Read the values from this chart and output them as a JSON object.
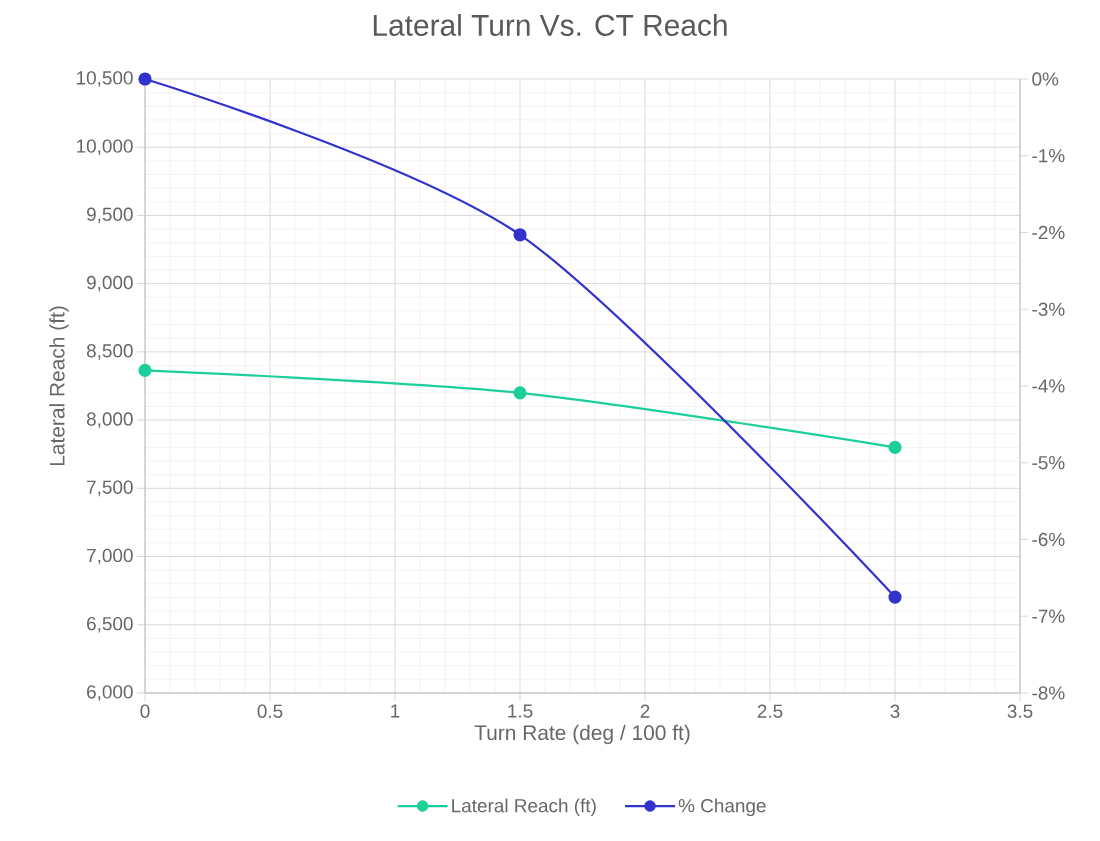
{
  "chart_data": {
    "type": "line",
    "title": "Lateral Turn Vs. CT Reach",
    "xlabel": "Turn Rate (deg / 100 ft)",
    "ylabel": "Lateral Reach (ft)",
    "x": [
      0,
      1.5,
      3
    ],
    "series": [
      {
        "name": "Lateral Reach (ft)",
        "color": "#1ccf9a",
        "values": [
          8365,
          8200,
          7800
        ]
      },
      {
        "name": "% Change",
        "color": "#3333cc",
        "values": [
          0,
          -2.03,
          -6.75
        ],
        "axis": "y2"
      }
    ],
    "xlim": [
      0,
      3.5
    ],
    "xticks": [
      0,
      0.5,
      1,
      1.5,
      2,
      2.5,
      3,
      3.5
    ],
    "ylim": [
      6000,
      10500
    ],
    "yticks": [
      {
        "value": 6000,
        "label": "6,000"
      },
      {
        "value": 6500,
        "label": "6,500"
      },
      {
        "value": 7000,
        "label": "7,000"
      },
      {
        "value": 7500,
        "label": "7,500"
      },
      {
        "value": 8000,
        "label": "8,000"
      },
      {
        "value": 8500,
        "label": "8,500"
      },
      {
        "value": 9000,
        "label": "9,000"
      },
      {
        "value": 9500,
        "label": "9,500"
      },
      {
        "value": 10000,
        "label": "10,000"
      },
      {
        "value": 10500,
        "label": "10,500"
      }
    ],
    "y2lim": [
      -8,
      0
    ],
    "y2ticks": [
      {
        "value": -8,
        "label": "-8%"
      },
      {
        "value": -7,
        "label": "-7%"
      },
      {
        "value": -6,
        "label": "-6%"
      },
      {
        "value": -5,
        "label": "-5%"
      },
      {
        "value": -4,
        "label": "-4%"
      },
      {
        "value": -3,
        "label": "-3%"
      },
      {
        "value": -2,
        "label": "-2%"
      },
      {
        "value": -1,
        "label": "-1%"
      },
      {
        "value": 0,
        "label": "0%"
      }
    ],
    "grid": true,
    "legend": "bottom",
    "marker": "circle"
  }
}
